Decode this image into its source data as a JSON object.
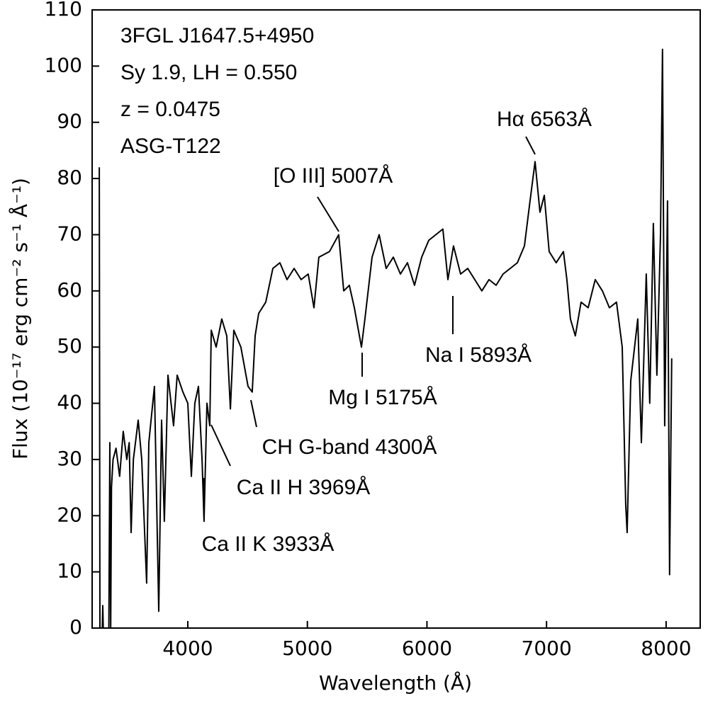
{
  "chart_data": {
    "type": "line",
    "x_label": "Wavelength (Å)",
    "y_label": "Flux (10⁻¹⁷ erg cm⁻² s⁻¹ Å⁻¹)",
    "info_lines": [
      "3FGL J1647.5+4950",
      "Sy 1.9, LH = 0.550",
      "z = 0.0475",
      "ASG-T122"
    ],
    "annotations": [
      "Hα 6563Å",
      "[O III] 5007Å",
      "Mg I 5175Å",
      "Na I 5893Å",
      "CH G-band 4300Å",
      "Ca II H 3969Å",
      "Ca II K 3933Å"
    ],
    "xlim": [
      3200,
      8285
    ],
    "ylim": [
      0,
      110
    ],
    "xticks": [
      4000,
      5000,
      6000,
      7000,
      8000
    ],
    "yticks": [
      0,
      10,
      20,
      30,
      40,
      50,
      60,
      70,
      80,
      90,
      100,
      110
    ],
    "color": "#000000",
    "x": [
      3260,
      3265,
      3285,
      3289,
      3293,
      3340,
      3348,
      3355,
      3362,
      3375,
      3400,
      3430,
      3460,
      3490,
      3510,
      3526,
      3545,
      3585,
      3615,
      3656,
      3674,
      3721,
      3757,
      3781,
      3804,
      3834,
      3881,
      3911,
      3959,
      4000,
      4030,
      4059,
      4089,
      4119,
      4136,
      4160,
      4184,
      4196,
      4237,
      4284,
      4326,
      4356,
      4385,
      4444,
      4504,
      4539,
      4563,
      4593,
      4652,
      4711,
      4770,
      4830,
      4889,
      4948,
      5007,
      5055,
      5096,
      5185,
      5262,
      5304,
      5351,
      5393,
      5452,
      5481,
      5541,
      5600,
      5659,
      5719,
      5778,
      5837,
      5896,
      5956,
      6015,
      6074,
      6133,
      6175,
      6222,
      6281,
      6341,
      6400,
      6459,
      6519,
      6578,
      6637,
      6696,
      6756,
      6815,
      6862,
      6904,
      6945,
      6981,
      7022,
      7081,
      7141,
      7170,
      7200,
      7241,
      7289,
      7348,
      7407,
      7467,
      7526,
      7585,
      7633,
      7662,
      7674,
      7704,
      7763,
      7793,
      7834,
      7863,
      7893,
      7923,
      7953,
      7970,
      7988,
      8012,
      8029,
      8047
    ],
    "values": [
      82,
      0,
      0,
      4,
      0,
      0,
      33,
      0,
      25,
      30,
      32,
      27,
      35,
      30,
      33,
      17,
      30,
      37,
      30,
      8,
      33,
      43,
      3,
      37,
      19,
      45,
      36,
      45,
      42,
      40,
      27,
      40,
      43,
      30,
      19,
      40,
      36,
      53,
      50,
      55,
      52,
      39,
      53,
      50,
      43,
      42,
      52,
      56,
      58,
      64,
      65,
      62,
      64,
      62,
      63,
      57,
      66,
      67,
      70,
      60,
      61,
      57,
      50,
      55,
      66,
      70,
      64,
      66,
      63,
      65,
      61,
      66,
      69,
      70,
      71,
      62,
      68,
      63,
      64,
      62,
      60,
      62,
      61,
      63,
      64,
      65,
      68,
      76,
      83,
      74,
      77,
      67,
      65,
      67,
      62,
      55,
      52,
      58,
      57,
      62,
      60,
      57,
      58,
      50,
      22,
      17,
      44,
      55,
      33,
      63,
      40,
      72,
      45,
      70,
      103,
      36,
      76,
      9.5,
      48
    ]
  }
}
